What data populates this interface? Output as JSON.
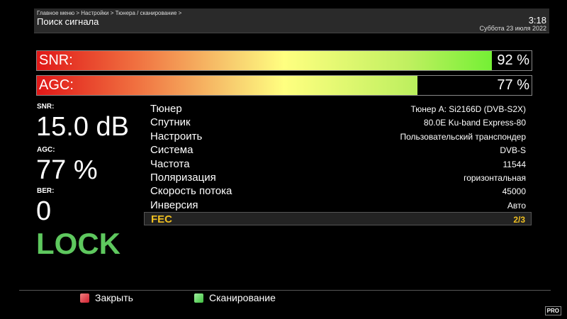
{
  "header": {
    "breadcrumb": "Главное меню > Настройки > Тюнера / сканирование >",
    "title": "Поиск сигнала",
    "time": "3:18",
    "date": "Суббота 23 июля 2022"
  },
  "bars": [
    {
      "label": "SNR:",
      "value": "92 %",
      "percent": 92
    },
    {
      "label": "AGC:",
      "value": "77 %",
      "percent": 77
    }
  ],
  "stats": {
    "snr_label": "SNR:",
    "snr_value": "15.0 dB",
    "agc_label": "AGC:",
    "agc_value": "77 %",
    "ber_label": "BER:",
    "ber_value": "0",
    "lock": "LOCK"
  },
  "info": [
    {
      "k": "Тюнер",
      "v": "Тюнер A: Si2166D (DVB-S2X)"
    },
    {
      "k": "Спутник",
      "v": "80.0E Ku-band Express-80"
    },
    {
      "k": "Настроить",
      "v": "Пользовательский транспондер"
    },
    {
      "k": "Система",
      "v": "DVB-S"
    },
    {
      "k": "Частота",
      "v": "11544"
    },
    {
      "k": "Поляризация",
      "v": "горизонтальная"
    },
    {
      "k": "Скорость потока",
      "v": "45000"
    },
    {
      "k": "Инверсия",
      "v": "Авто"
    },
    {
      "k": "FEC",
      "v": "2/3"
    }
  ],
  "footer": {
    "close": "Закрыть",
    "scan": "Сканирование",
    "red": "#d02030",
    "green": "#40c040",
    "logo": "PRO"
  }
}
